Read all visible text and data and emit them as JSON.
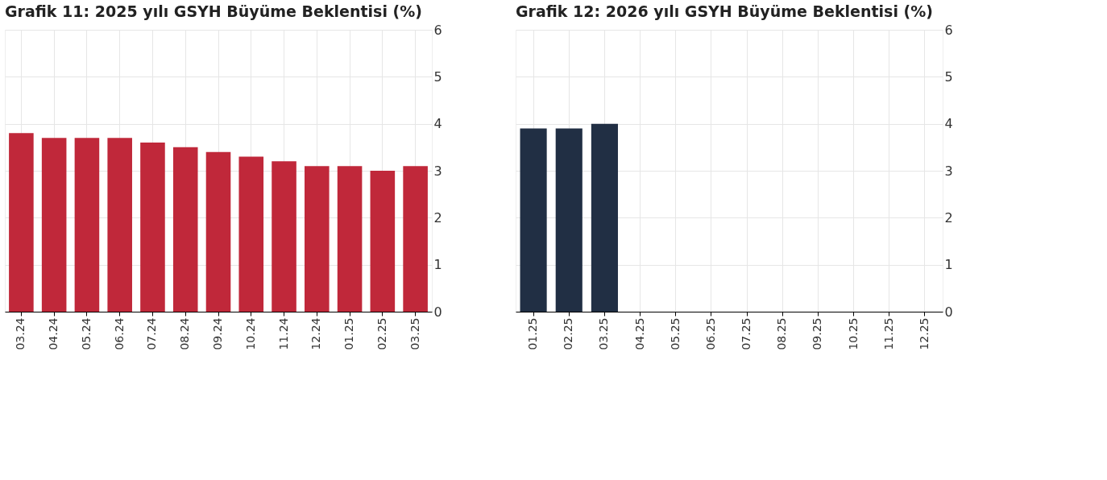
{
  "chart_data": [
    {
      "type": "bar",
      "title": "Grafik 11: 2025 yılı GSYH Büyüme Beklentisi (%)",
      "categories": [
        "03.24",
        "04.24",
        "05.24",
        "06.24",
        "07.24",
        "08.24",
        "09.24",
        "10.24",
        "11.24",
        "12.24",
        "01.25",
        "02.25",
        "03.25"
      ],
      "values": [
        3.8,
        3.7,
        3.7,
        3.7,
        3.6,
        3.5,
        3.4,
        3.3,
        3.2,
        3.1,
        3.1,
        3.0,
        3.1
      ],
      "color": "#c0283a",
      "ylim": [
        0,
        6
      ],
      "yticks": [
        0,
        1,
        2,
        3,
        4,
        5,
        6
      ],
      "grid": true
    },
    {
      "type": "bar",
      "title": "Grafik 12: 2026 yılı GSYH Büyüme Beklentisi (%)",
      "categories": [
        "01.25",
        "02.25",
        "03.25",
        "04.25",
        "05.25",
        "06.25",
        "07.25",
        "08.25",
        "09.25",
        "10.25",
        "11.25",
        "12.25"
      ],
      "values": [
        3.9,
        3.9,
        4.0,
        null,
        null,
        null,
        null,
        null,
        null,
        null,
        null,
        null
      ],
      "color": "#212f44",
      "ylim": [
        0,
        6
      ],
      "yticks": [
        0,
        1,
        2,
        3,
        4,
        5,
        6
      ],
      "grid": true
    }
  ]
}
